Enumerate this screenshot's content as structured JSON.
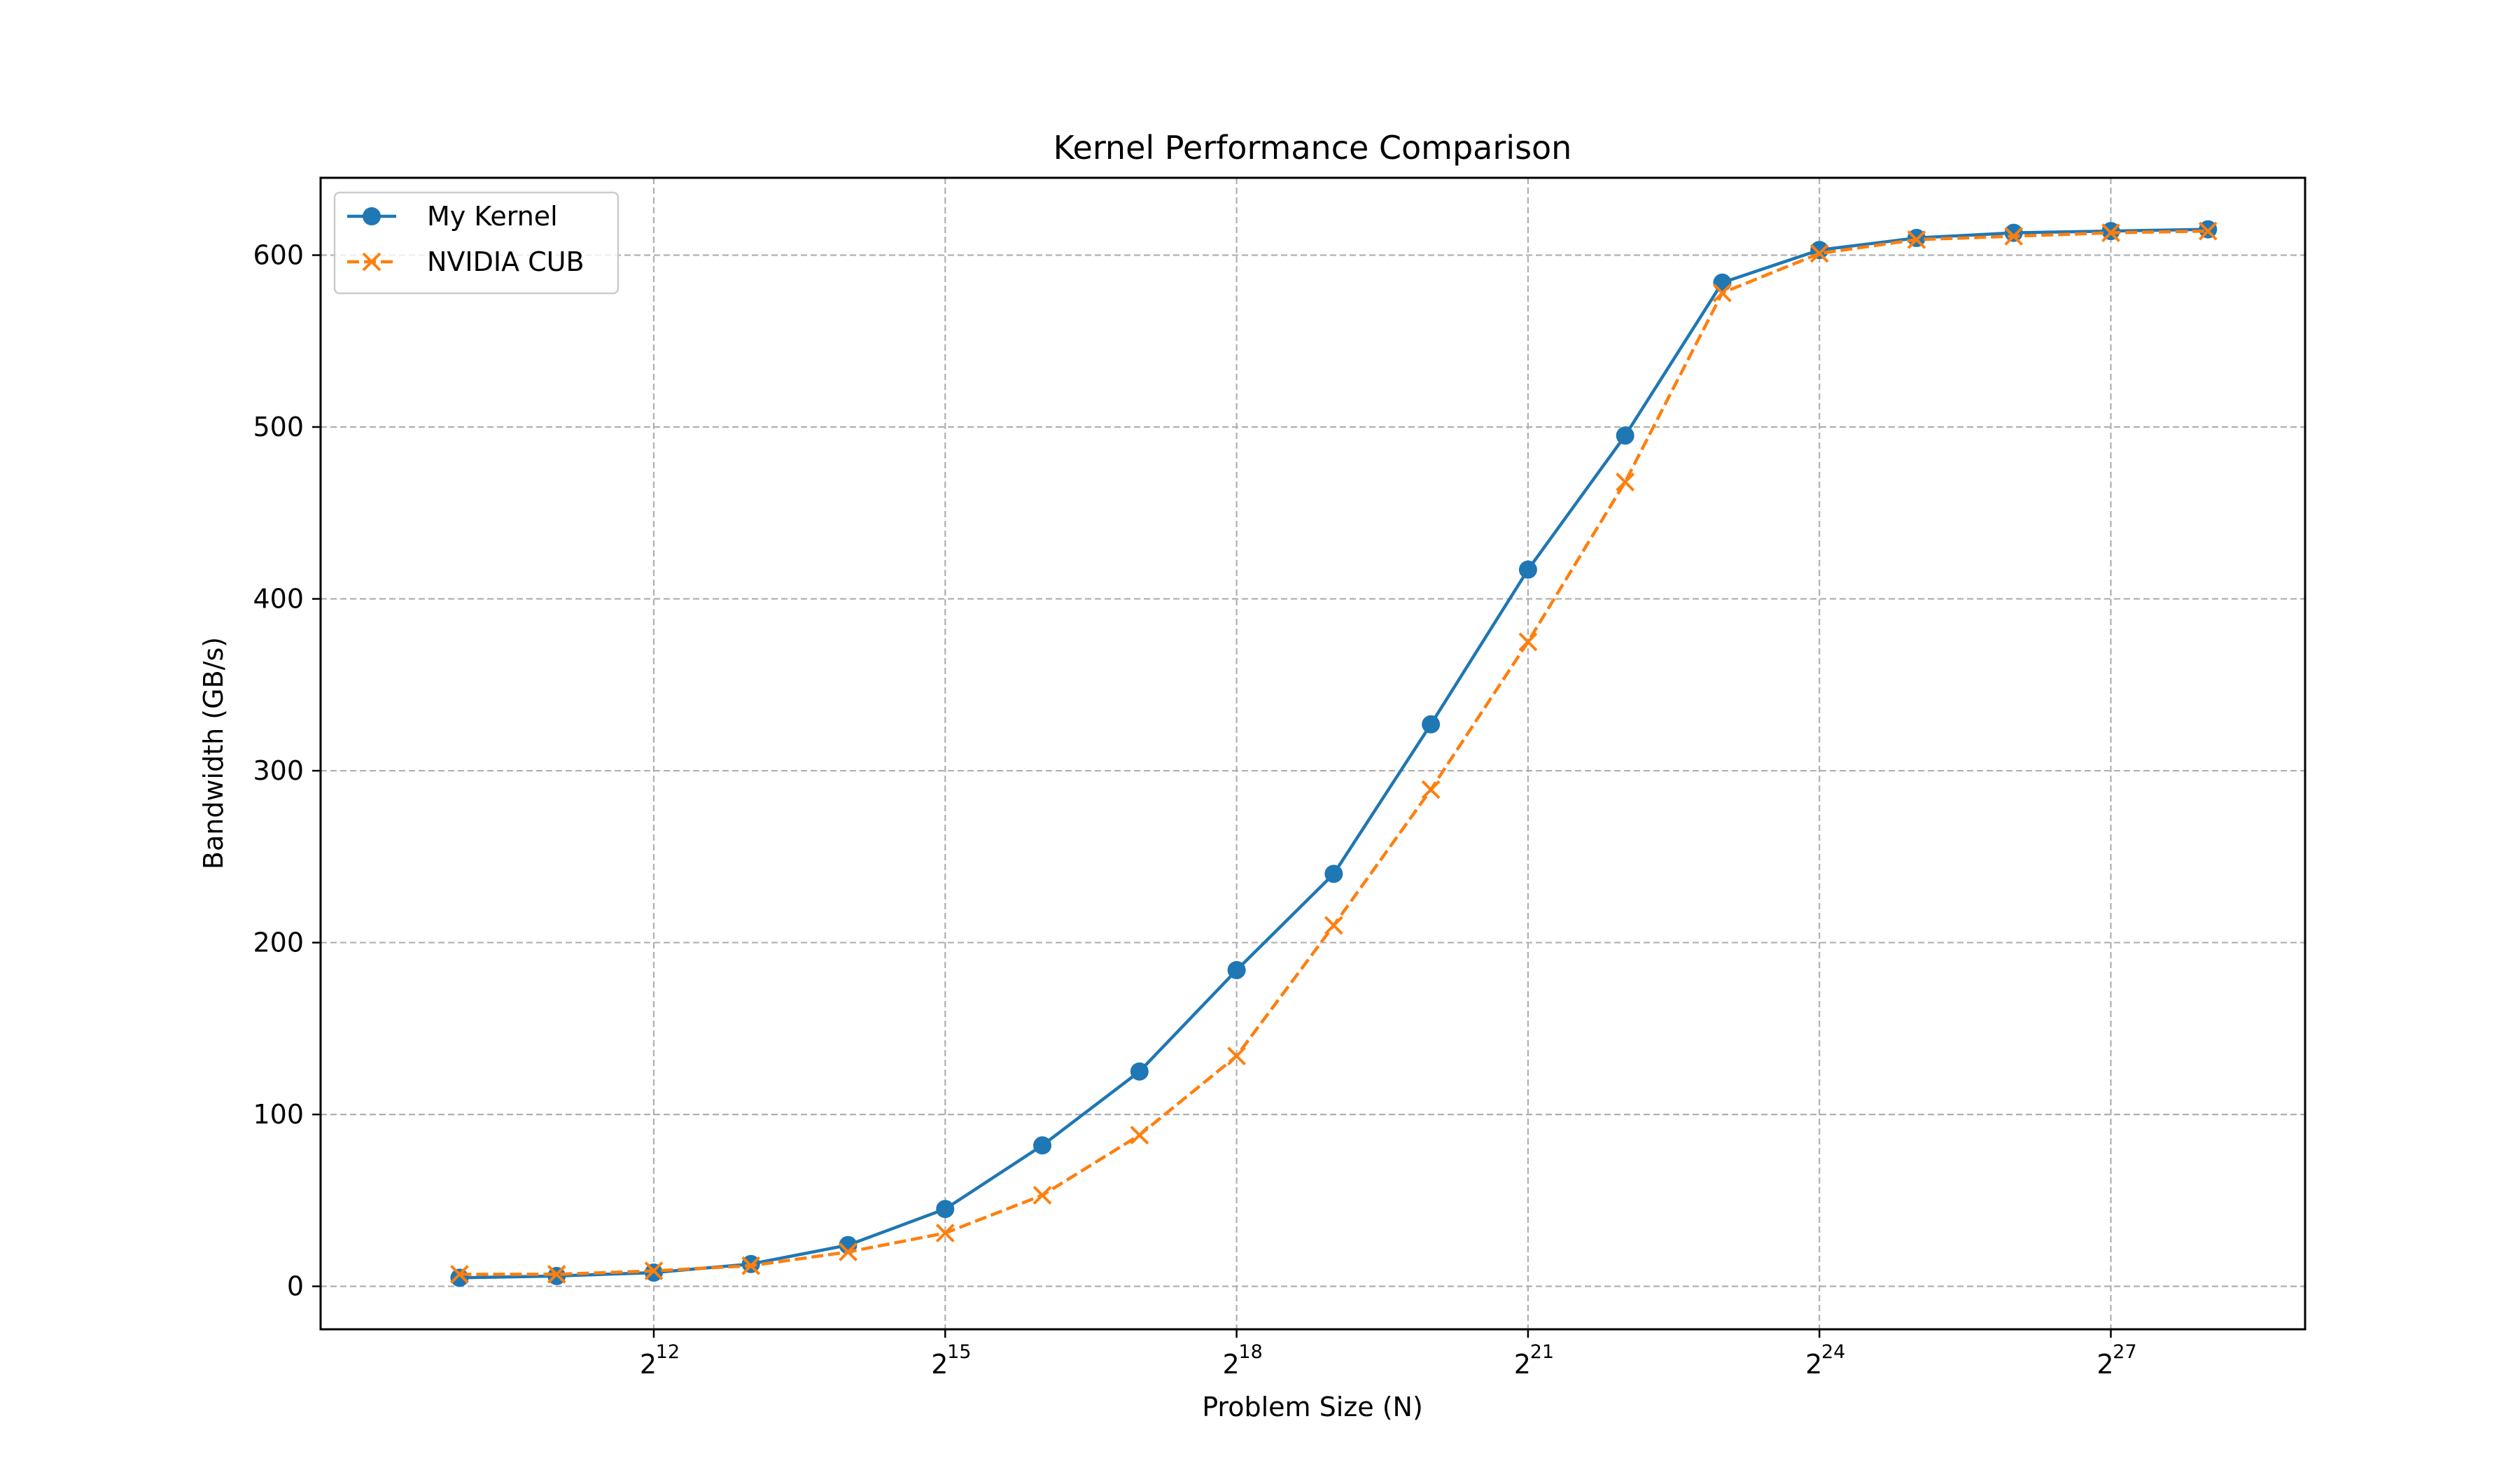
{
  "chart_data": {
    "type": "line",
    "title": "Kernel Performance Comparison",
    "xlabel": "Problem Size (N)",
    "ylabel": "Bandwidth (GB/s)",
    "x_scale": "log2",
    "x": [
      1024,
      2048,
      4096,
      8192,
      16384,
      32768,
      65536,
      131072,
      262144,
      524288,
      1048576,
      2097152,
      4194304,
      8388608,
      16777216,
      33554432,
      67108864,
      134217728,
      268435456
    ],
    "xlim": [
      380,
      536870912
    ],
    "ylim": [
      -25,
      645
    ],
    "x_ticks": [
      {
        "value": 4096,
        "base": "2",
        "exp": "12"
      },
      {
        "value": 32768,
        "base": "2",
        "exp": "15"
      },
      {
        "value": 262144,
        "base": "2",
        "exp": "18"
      },
      {
        "value": 2097152,
        "base": "2",
        "exp": "21"
      },
      {
        "value": 16777216,
        "base": "2",
        "exp": "24"
      },
      {
        "value": 134217728,
        "base": "2",
        "exp": "27"
      }
    ],
    "y_ticks": [
      0,
      100,
      200,
      300,
      400,
      500,
      600
    ],
    "grid": true,
    "legend_position": "top-left",
    "series": [
      {
        "name": "My Kernel",
        "color": "#1f77b4",
        "marker": "circle",
        "line_style": "solid",
        "values": [
          5,
          6,
          8,
          13,
          24,
          45,
          82,
          125,
          184,
          240,
          327,
          417,
          495,
          584,
          603,
          610,
          613,
          614,
          615
        ]
      },
      {
        "name": "NVIDIA CUB",
        "color": "#ff7f0e",
        "marker": "x",
        "line_style": "dashed",
        "values": [
          7,
          7,
          9,
          12,
          20,
          31,
          53,
          88,
          134,
          210,
          289,
          375,
          468,
          578,
          601,
          609,
          611,
          613,
          614
        ]
      }
    ]
  }
}
